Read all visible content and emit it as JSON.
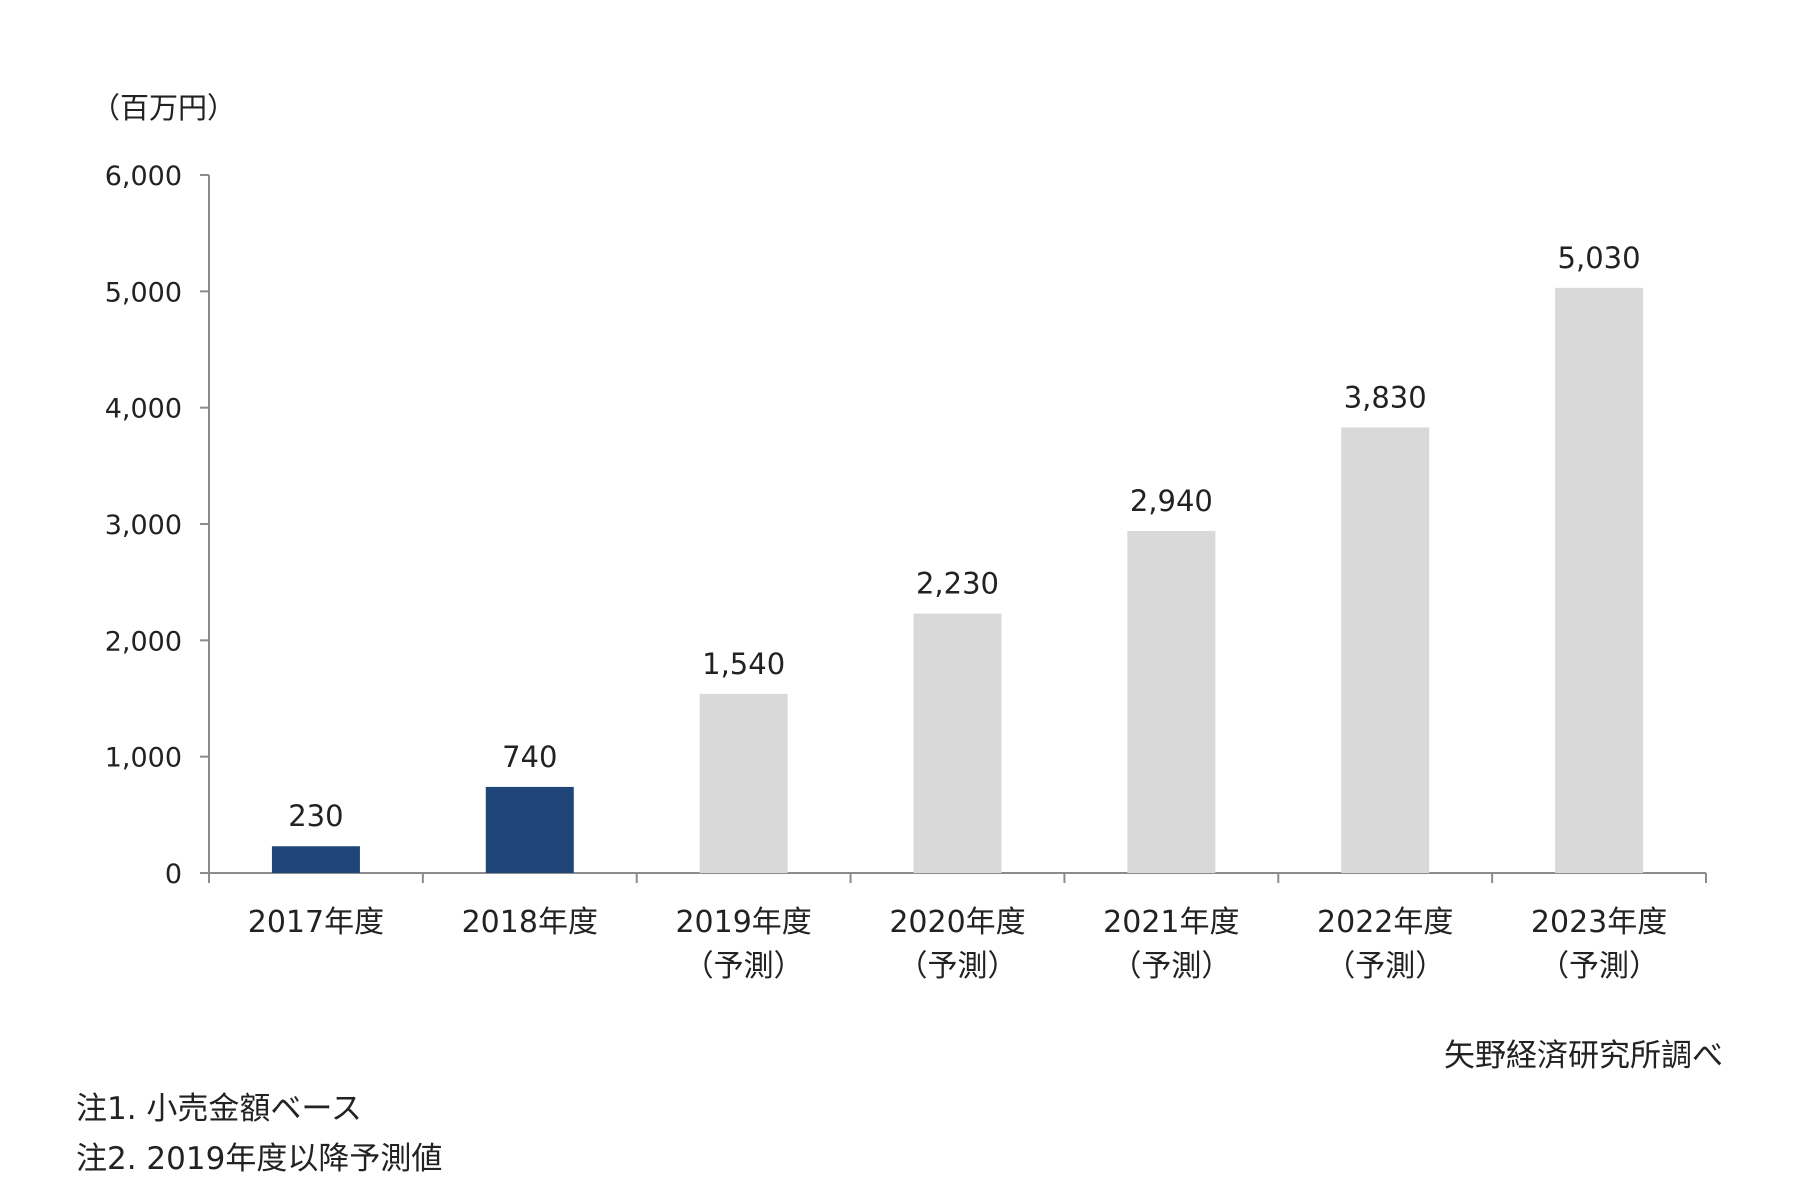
{
  "chart_data": {
    "type": "bar",
    "unit_label": "（百万円）",
    "categories": [
      [
        "2017年度"
      ],
      [
        "2018年度"
      ],
      [
        "2019年度",
        "（予測）"
      ],
      [
        "2020年度",
        "（予測）"
      ],
      [
        "2021年度",
        "（予測）"
      ],
      [
        "2022年度",
        "（予測）"
      ],
      [
        "2023年度",
        "（予測）"
      ]
    ],
    "values": [
      230,
      740,
      1540,
      2230,
      2940,
      3830,
      5030
    ],
    "value_labels": [
      "230",
      "740",
      "1,540",
      "2,230",
      "2,940",
      "3,830",
      "5,030"
    ],
    "forecast": [
      false,
      false,
      true,
      true,
      true,
      true,
      true
    ],
    "ylim": [
      0,
      6000
    ],
    "yticks": [
      0,
      1000,
      2000,
      3000,
      4000,
      5000,
      6000
    ],
    "ytick_labels": [
      "0",
      "1,000",
      "2,000",
      "3,000",
      "4,000",
      "5,000",
      "6,000"
    ],
    "grid": false,
    "colors": {
      "actual": "#1f4579",
      "forecast": "#d9d9d9",
      "axis": "#8c8c8c"
    }
  },
  "source": "矢野経済研究所調べ",
  "notes": [
    "注1. 小売金額ベース",
    "注2. 2019年度以降予測値"
  ]
}
